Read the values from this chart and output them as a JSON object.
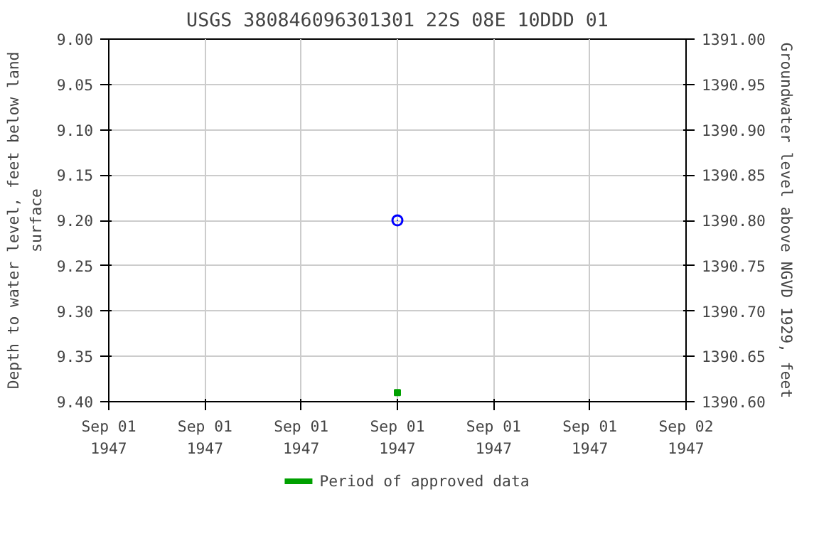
{
  "chart_data": {
    "type": "scatter",
    "title": "USGS 380846096301301 22S 08E 10DDD 01",
    "ylabel": "Depth to water level, feet below land surface",
    "y2label": "Groundwater level above NGVD 1929, feet",
    "series": [
      {
        "color": "#0000ff",
        "marker": "circle",
        "x": [
          "1947-09-01T12:00"
        ],
        "values": [
          9.2
        ]
      },
      {
        "name": "Period of approved data",
        "color": "#00a000",
        "marker": "square",
        "x": [
          "1947-09-01T12:00"
        ],
        "values": [
          9.39
        ]
      }
    ],
    "xlim": [
      "1947-09-01T00:00",
      "1947-09-02T00:00"
    ],
    "xticks": [
      {
        "value": "1947-09-01T00:00",
        "label": "Sep 01\n1947"
      },
      {
        "value": "1947-09-01T04:00",
        "label": "Sep 01\n1947"
      },
      {
        "value": "1947-09-01T08:00",
        "label": "Sep 01\n1947"
      },
      {
        "value": "1947-09-01T12:00",
        "label": "Sep 01\n1947"
      },
      {
        "value": "1947-09-01T16:00",
        "label": "Sep 01\n1947"
      },
      {
        "value": "1947-09-01T20:00",
        "label": "Sep 01\n1947"
      },
      {
        "value": "1947-09-02T00:00",
        "label": "Sep 02\n1947"
      }
    ],
    "ylim": [
      9.4,
      9.0
    ],
    "yticks": [
      {
        "value": 9.0,
        "label": "9.00"
      },
      {
        "value": 9.05,
        "label": "9.05"
      },
      {
        "value": 9.1,
        "label": "9.10"
      },
      {
        "value": 9.15,
        "label": "9.15"
      },
      {
        "value": 9.2,
        "label": "9.20"
      },
      {
        "value": 9.25,
        "label": "9.25"
      },
      {
        "value": 9.3,
        "label": "9.30"
      },
      {
        "value": 9.35,
        "label": "9.35"
      },
      {
        "value": 9.4,
        "label": "9.40"
      }
    ],
    "y2lim": [
      1390.6,
      1391.0
    ],
    "y2ticks": [
      {
        "value": 1391.0,
        "label": "1391.00"
      },
      {
        "value": 1390.95,
        "label": "1390.95"
      },
      {
        "value": 1390.9,
        "label": "1390.90"
      },
      {
        "value": 1390.85,
        "label": "1390.85"
      },
      {
        "value": 1390.8,
        "label": "1390.80"
      },
      {
        "value": 1390.75,
        "label": "1390.75"
      },
      {
        "value": 1390.7,
        "label": "1390.70"
      },
      {
        "value": 1390.65,
        "label": "1390.65"
      },
      {
        "value": 1390.6,
        "label": "1390.60"
      }
    ],
    "grid": true,
    "legend": "bottom"
  }
}
